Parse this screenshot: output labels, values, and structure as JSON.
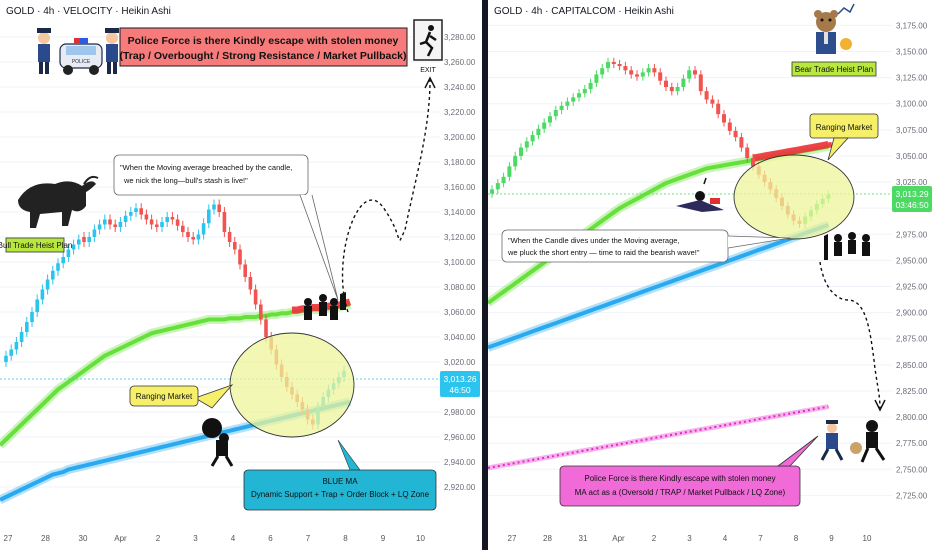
{
  "left": {
    "title": "GOLD · 4h · VELOCITY · Heikin Ashi",
    "police_title_line1": "Police Force is there Kindly escape with stolen money",
    "police_title_line2": "(Trap / Overbought / Strong Resistance / Market Pullback)",
    "exit_label": "EXIT",
    "plan_label": "Bull Trade Heist Plan",
    "ma_quote_line1": "\"When the Moving average breached by the candle,",
    "ma_quote_line2": "we nick the long—bull's stash is live!\"",
    "ranging_label": "Ranging Market",
    "blue_ma_line1": "BLUE MA",
    "blue_ma_line2": "Dynamic Support + Trap + Order Block + LQ Zone",
    "price_badge": "3,013.26",
    "price_badge_time": "46:50",
    "colors": {
      "up": "#2bc4ee",
      "down": "#f05350",
      "green_ma": "#66e03a",
      "blue_ma": "#29a9f0",
      "red_ma": "#f0313a"
    }
  },
  "right": {
    "title": "GOLD · 4h · CAPITALCOM · Heikin Ashi",
    "plan_label": "Bear Trade Heist Plan",
    "ranging_label": "Ranging Market",
    "ma_quote_line1": "\"When the Candle dives under the Moving average,",
    "ma_quote_line2": "we pluck the short entry — time to raid the bearish wave!\"",
    "police_note_line1": "Police Force is there Kindly escape with stolen money",
    "police_note_line2": "MA act as a (Oversold / TRAP / Market Pullback / LQ Zone)",
    "price_badge": "3,013.29",
    "price_badge_time": "03:46:50",
    "colors": {
      "up": "#4cd964",
      "down": "#f05350",
      "green_ma": "#66e03a",
      "blue_ma": "#29a9f0",
      "red_ma": "#f0313a",
      "pink_ma": "#e625c8"
    }
  },
  "chart_data": [
    {
      "type": "candlestick",
      "title": "GOLD · 4h · VELOCITY · Heikin Ashi",
      "x_ticks": [
        "27",
        "28",
        "30",
        "Apr",
        "2",
        "3",
        "4",
        "6",
        "7",
        "8",
        "9",
        "10"
      ],
      "y_ticks": [
        "3,280.00",
        "3,260.00",
        "3,240.00",
        "3,220.00",
        "3,200.00",
        "3,180.00",
        "3,160.00",
        "3,140.00",
        "3,120.00",
        "3,100.00",
        "3,080.00",
        "3,060.00",
        "3,040.00",
        "3,020.00",
        "3,000.00",
        "2,980.00",
        "2,960.00",
        "2,940.00",
        "2,920.00"
      ],
      "ylim": [
        2908,
        3292
      ],
      "last_price": 3013.26,
      "close": [
        3025,
        3030,
        3036,
        3044,
        3052,
        3060,
        3070,
        3078,
        3086,
        3093,
        3099,
        3104,
        3110,
        3114,
        3118,
        3116,
        3120,
        3126,
        3130,
        3134,
        3130,
        3128,
        3132,
        3137,
        3140,
        3143,
        3138,
        3134,
        3130,
        3128,
        3132,
        3136,
        3134,
        3129,
        3124,
        3120,
        3118,
        3122,
        3131,
        3142,
        3146,
        3140,
        3124,
        3116,
        3110,
        3098,
        3088,
        3078,
        3066,
        3054,
        3040,
        3030,
        3018,
        3008,
        3000,
        2994,
        2988,
        2982,
        2974,
        2970,
        2984,
        2992,
        2998,
        3003,
        3008,
        3013
      ],
      "open": [
        3020,
        3025,
        3030,
        3036,
        3044,
        3052,
        3060,
        3070,
        3078,
        3086,
        3093,
        3099,
        3104,
        3110,
        3114,
        3120,
        3116,
        3120,
        3126,
        3130,
        3134,
        3130,
        3128,
        3132,
        3137,
        3140,
        3143,
        3138,
        3134,
        3130,
        3128,
        3132,
        3136,
        3134,
        3129,
        3124,
        3120,
        3118,
        3122,
        3131,
        3142,
        3146,
        3140,
        3124,
        3116,
        3110,
        3098,
        3088,
        3078,
        3066,
        3054,
        3040,
        3030,
        3018,
        3008,
        3000,
        2994,
        2988,
        2982,
        2974,
        2970,
        2984,
        2992,
        2998,
        3003,
        3008
      ],
      "green_ma": [
        2958,
        2962,
        2966,
        2970,
        2974,
        2978,
        2982,
        2986,
        2990,
        2994,
        2998,
        3001,
        3004,
        3007,
        3010,
        3013,
        3016,
        3019,
        3022,
        3025,
        3027,
        3029,
        3031,
        3033,
        3035,
        3037,
        3039,
        3041,
        3043,
        3044,
        3045,
        3046,
        3047,
        3048,
        3049,
        3050,
        3051,
        3052,
        3053,
        3054,
        3054,
        3054,
        3054,
        3055,
        3055,
        3055,
        3056,
        3056,
        3056,
        3057,
        3057,
        3058,
        3058,
        3059,
        3059,
        3060,
        3060,
        3061,
        3061,
        3062,
        3062,
        3063,
        3063,
        3064,
        3064,
        3065
      ],
      "blue_ma": [
        2912,
        2914,
        2916,
        2918,
        2920,
        2922,
        2924,
        2926,
        2928,
        2930,
        2931,
        2932,
        2934,
        2935,
        2936,
        2937,
        2938,
        2939,
        2940,
        2941,
        2942,
        2943,
        2944,
        2945,
        2946,
        2947,
        2948,
        2949,
        2950,
        2951,
        2952,
        2953,
        2954,
        2955,
        2956,
        2957,
        2958,
        2959,
        2960,
        2961,
        2962,
        2963,
        2964,
        2965,
        2966,
        2967,
        2968,
        2969,
        2970,
        2971,
        2972,
        2973,
        2974,
        2975,
        2976,
        2977,
        2978,
        2979,
        2980,
        2981,
        2982,
        2983,
        2984,
        2985,
        2986,
        2987
      ]
    },
    {
      "type": "candlestick",
      "title": "GOLD · 4h · CAPITALCOM · Heikin Ashi",
      "x_ticks": [
        "27",
        "28",
        "31",
        "Apr",
        "2",
        "3",
        "4",
        "7",
        "8",
        "9",
        "10"
      ],
      "y_ticks": [
        "3,175.00",
        "3,150.00",
        "3,125.00",
        "3,100.00",
        "3,075.00",
        "3,050.00",
        "3,025.00",
        "3,000.00",
        "2,975.00",
        "2,950.00",
        "2,925.00",
        "2,900.00",
        "2,875.00",
        "2,850.00",
        "2,825.00",
        "2,800.00",
        "2,775.00",
        "2,750.00",
        "2,725.00"
      ],
      "ylim": [
        2712,
        3183
      ],
      "last_price": 3013.29,
      "close": [
        3018,
        3024,
        3030,
        3040,
        3050,
        3058,
        3064,
        3070,
        3076,
        3082,
        3088,
        3094,
        3098,
        3102,
        3106,
        3110,
        3114,
        3120,
        3128,
        3134,
        3140,
        3138,
        3136,
        3132,
        3128,
        3126,
        3130,
        3134,
        3130,
        3122,
        3116,
        3112,
        3116,
        3124,
        3132,
        3128,
        3112,
        3104,
        3100,
        3090,
        3082,
        3074,
        3068,
        3058,
        3048,
        3040,
        3032,
        3025,
        3018,
        3010,
        3002,
        2994,
        2988,
        2985,
        2992,
        2998,
        3004,
        3009,
        3013
      ],
      "open": [
        3014,
        3018,
        3024,
        3030,
        3040,
        3050,
        3058,
        3064,
        3070,
        3076,
        3082,
        3088,
        3094,
        3098,
        3102,
        3106,
        3110,
        3114,
        3120,
        3128,
        3134,
        3140,
        3138,
        3136,
        3132,
        3128,
        3126,
        3130,
        3134,
        3130,
        3122,
        3116,
        3112,
        3116,
        3124,
        3132,
        3128,
        3112,
        3104,
        3100,
        3090,
        3082,
        3074,
        3068,
        3058,
        3048,
        3040,
        3032,
        3025,
        3018,
        3010,
        3002,
        2994,
        2988,
        2985,
        2992,
        2998,
        3004,
        3009
      ],
      "green_ma": [
        2912,
        2916,
        2920,
        2924,
        2928,
        2932,
        2936,
        2940,
        2944,
        2948,
        2952,
        2956,
        2960,
        2964,
        2968,
        2972,
        2976,
        2980,
        2984,
        2988,
        2992,
        2996,
        3000,
        3003,
        3006,
        3009,
        3012,
        3015,
        3018,
        3021,
        3024,
        3026,
        3028,
        3030,
        3032,
        3034,
        3036,
        3038,
        3039,
        3040,
        3041,
        3042,
        3043,
        3044,
        3045,
        3046,
        3047,
        3048,
        3049,
        3050,
        3051,
        3052,
        3053,
        3054,
        3055,
        3056,
        3057,
        3058,
        3059
      ],
      "blue_ma": [
        2868,
        2870,
        2872,
        2874,
        2876,
        2878,
        2880,
        2882,
        2884,
        2886,
        2888,
        2890,
        2892,
        2894,
        2896,
        2898,
        2900,
        2902,
        2904,
        2906,
        2908,
        2910,
        2912,
        2914,
        2916,
        2918,
        2920,
        2922,
        2924,
        2926,
        2928,
        2930,
        2932,
        2934,
        2936,
        2938,
        2940,
        2942,
        2944,
        2946,
        2948,
        2950,
        2952,
        2954,
        2956,
        2958,
        2960,
        2962,
        2964,
        2966,
        2968,
        2970,
        2972,
        2974,
        2976,
        2978,
        2980,
        2982,
        2984
      ],
      "pink_ma": [
        2752,
        2753,
        2754,
        2755,
        2756,
        2757,
        2758,
        2759,
        2760,
        2761,
        2762,
        2763,
        2764,
        2765,
        2766,
        2767,
        2768,
        2769,
        2770,
        2771,
        2772,
        2773,
        2774,
        2775,
        2776,
        2777,
        2778,
        2779,
        2780,
        2781,
        2782,
        2783,
        2784,
        2785,
        2786,
        2787,
        2788,
        2789,
        2790,
        2791,
        2792,
        2793,
        2794,
        2795,
        2796,
        2797,
        2798,
        2799,
        2800,
        2801,
        2802,
        2803,
        2804,
        2805,
        2806,
        2807,
        2808,
        2809,
        2810
      ]
    }
  ]
}
